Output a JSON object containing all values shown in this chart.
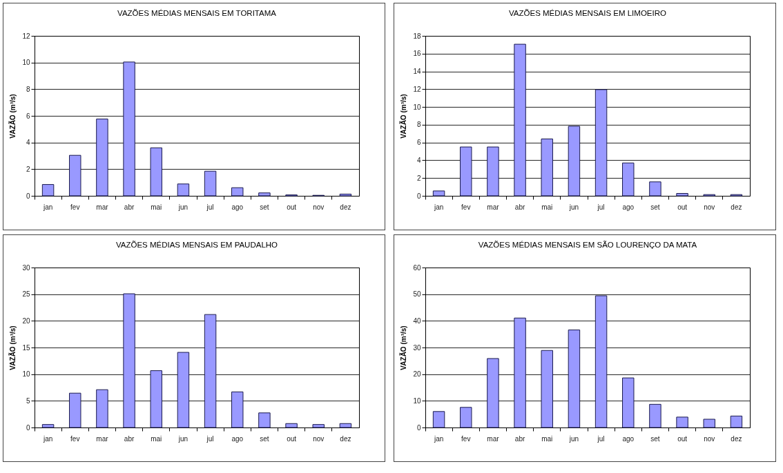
{
  "chart_data": [
    {
      "type": "bar",
      "title": "VAZÕES MÉDIAS MENSAIS EM TORITAMA",
      "ylabel": "VAZÃO (m³/s)",
      "categories": [
        "jan",
        "fev",
        "mar",
        "abr",
        "mai",
        "jun",
        "jul",
        "ago",
        "set",
        "out",
        "nov",
        "dez"
      ],
      "values": [
        0.85,
        3.04,
        5.76,
        10.04,
        3.6,
        0.89,
        1.85,
        0.61,
        0.22,
        0.07,
        0.04,
        0.13
      ],
      "color": "#9999ff",
      "ylim": [
        0,
        12
      ],
      "yticks": [
        0,
        2,
        4,
        6,
        8,
        10,
        12
      ],
      "grid": "y"
    },
    {
      "type": "bar",
      "title": "VAZÕES MÉDIAS MENSAIS EM LIMOEIRO",
      "ylabel": "VAZÃO (m³/s)",
      "categories": [
        "jan",
        "fev",
        "mar",
        "abr",
        "mai",
        "jun",
        "jul",
        "ago",
        "set",
        "out",
        "nov",
        "dez"
      ],
      "values": [
        0.55,
        5.5,
        5.5,
        17.06,
        6.4,
        7.83,
        11.95,
        3.7,
        1.57,
        0.27,
        0.14,
        0.14
      ],
      "color": "#9999ff",
      "ylim": [
        0,
        18
      ],
      "yticks": [
        0,
        2,
        4,
        6,
        8,
        10,
        12,
        14,
        16,
        18
      ],
      "grid": "y"
    },
    {
      "type": "bar",
      "title": "VAZÕES MÉDIAS MENSAIS EM PAUDALHO",
      "ylabel": "VAZÃO (m³/s)",
      "categories": [
        "jan",
        "fev",
        "mar",
        "abr",
        "mai",
        "jun",
        "jul",
        "ago",
        "set",
        "out",
        "nov",
        "dez"
      ],
      "values": [
        0.56,
        6.44,
        7.09,
        25.08,
        10.66,
        14.09,
        21.19,
        6.68,
        2.74,
        0.74,
        0.56,
        0.74
      ],
      "color": "#9999ff",
      "ylim": [
        0,
        30
      ],
      "yticks": [
        0,
        5,
        10,
        15,
        20,
        25,
        30
      ],
      "grid": "y"
    },
    {
      "type": "bar",
      "title": "VAZÕES MÉDIAS MENSAIS EM SÃO LOURENÇO DA MATA",
      "ylabel": "VAZÃO (m³/s)",
      "categories": [
        "jan",
        "fev",
        "mar",
        "abr",
        "mai",
        "jun",
        "jul",
        "ago",
        "set",
        "out",
        "nov",
        "dez"
      ],
      "values": [
        6.0,
        7.55,
        25.87,
        41.06,
        28.9,
        36.6,
        49.4,
        18.6,
        8.7,
        3.9,
        3.1,
        4.3
      ],
      "color": "#9999ff",
      "ylim": [
        0,
        60
      ],
      "yticks": [
        0,
        10,
        20,
        30,
        40,
        50,
        60
      ],
      "grid": "y"
    }
  ]
}
